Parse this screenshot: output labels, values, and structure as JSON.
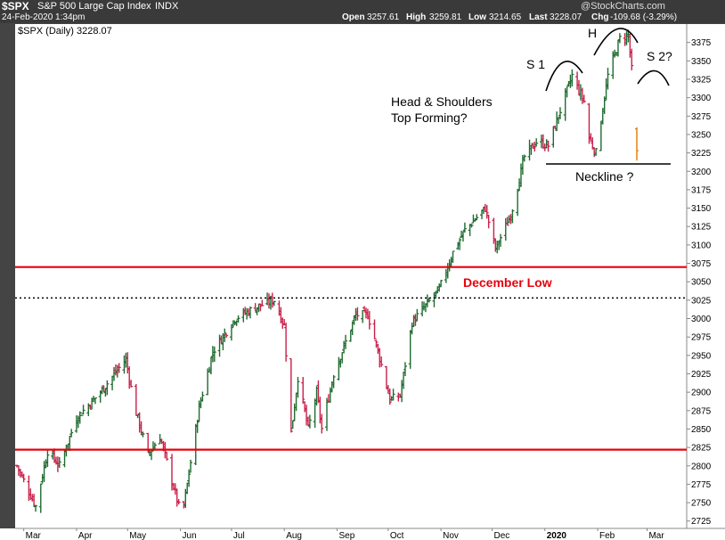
{
  "header": {
    "symbol": "$SPX",
    "name": "S&P 500 Large Cap Index",
    "exchange": "INDX",
    "datetime": "24-Feb-2020 1:34pm",
    "open_label": "Open",
    "open": "3257.61",
    "high_label": "High",
    "high": "3259.81",
    "low_label": "Low",
    "low": "3214.65",
    "last_label": "Last",
    "last": "3228.07",
    "chg_label": "Chg",
    "chg": "-109.68 (-3.29%)",
    "watermark": "@StockCharts.com"
  },
  "legend": {
    "text": "$SPX (Daily) 3228.07"
  },
  "colors": {
    "up": "#1f6b2f",
    "down": "#c8204a",
    "support": "#e8000d",
    "annot": "#000000",
    "last_bar": "#e07b00"
  },
  "chart_data": {
    "type": "candlestick",
    "title": "$SPX S&P 500 Large Cap Index INDX",
    "y_ticks": [
      2725,
      2750,
      2775,
      2800,
      2825,
      2850,
      2875,
      2900,
      2925,
      2950,
      2975,
      3000,
      3025,
      3050,
      3075,
      3100,
      3125,
      3150,
      3175,
      3200,
      3225,
      3250,
      3275,
      3300,
      3325,
      3350,
      3375
    ],
    "ylim": [
      2715,
      3400
    ],
    "x_tick_labels": [
      "Mar",
      "Apr",
      "May",
      "Jun",
      "Jul",
      "Aug",
      "Sep",
      "Oct",
      "Nov",
      "Dec",
      "2020",
      "Feb",
      "Mar"
    ],
    "x_tick_dates": [
      "2019-03-01",
      "2019-04-01",
      "2019-05-01",
      "2019-06-01",
      "2019-07-01",
      "2019-08-01",
      "2019-09-01",
      "2019-10-01",
      "2019-11-01",
      "2019-12-01",
      "2020-01-01",
      "2020-02-01",
      "2020-03-01"
    ],
    "date_range": [
      "2019-02-25",
      "2020-02-24"
    ],
    "price_path": [
      [
        "2019-02-25",
        2800
      ],
      [
        "2019-03-08",
        2745
      ],
      [
        "2019-03-15",
        2820
      ],
      [
        "2019-03-22",
        2800
      ],
      [
        "2019-04-01",
        2865
      ],
      [
        "2019-04-15",
        2900
      ],
      [
        "2019-04-30",
        2945
      ],
      [
        "2019-05-05",
        2880
      ],
      [
        "2019-05-13",
        2815
      ],
      [
        "2019-05-20",
        2840
      ],
      [
        "2019-05-31",
        2745
      ],
      [
        "2019-06-03",
        2745
      ],
      [
        "2019-06-12",
        2880
      ],
      [
        "2019-06-20",
        2955
      ],
      [
        "2019-07-03",
        3000
      ],
      [
        "2019-07-15",
        3015
      ],
      [
        "2019-07-26",
        3025
      ],
      [
        "2019-08-01",
        2990
      ],
      [
        "2019-08-05",
        2845
      ],
      [
        "2019-08-09",
        2920
      ],
      [
        "2019-08-15",
        2850
      ],
      [
        "2019-08-20",
        2900
      ],
      [
        "2019-08-23",
        2850
      ],
      [
        "2019-08-30",
        2925
      ],
      [
        "2019-09-12",
        3005
      ],
      [
        "2019-09-19",
        3005
      ],
      [
        "2019-09-24",
        2965
      ],
      [
        "2019-10-02",
        2890
      ],
      [
        "2019-10-08",
        2895
      ],
      [
        "2019-10-15",
        2995
      ],
      [
        "2019-10-31",
        3040
      ],
      [
        "2019-11-08",
        3090
      ],
      [
        "2019-11-15",
        3120
      ],
      [
        "2019-11-27",
        3150
      ],
      [
        "2019-12-03",
        3095
      ],
      [
        "2019-12-12",
        3140
      ],
      [
        "2019-12-20",
        3220
      ],
      [
        "2019-12-27",
        3240
      ],
      [
        "2020-01-03",
        3235
      ],
      [
        "2020-01-17",
        3330
      ],
      [
        "2020-01-24",
        3295
      ],
      [
        "2020-01-27",
        3245
      ],
      [
        "2020-01-31",
        3225
      ],
      [
        "2020-02-07",
        3330
      ],
      [
        "2020-02-14",
        3380
      ],
      [
        "2020-02-19",
        3385
      ],
      [
        "2020-02-21",
        3338
      ],
      [
        "2020-02-24",
        3228
      ]
    ],
    "last_bar": {
      "date": "2020-02-24",
      "open": 3257.61,
      "high": 3259.81,
      "low": 3214.65,
      "close": 3228.07
    },
    "horizontal_lines": [
      {
        "label": "December Low",
        "value": 3070,
        "style": "solid",
        "color": "#e8000d"
      },
      {
        "value": 3028,
        "style": "dotted",
        "color": "#000000"
      },
      {
        "value": 2822,
        "style": "solid",
        "color": "#e8000d"
      }
    ]
  },
  "annotations": {
    "head_shoulders_line1": "Head & Shoulders",
    "head_shoulders_line2": "Top Forming?",
    "s1": "S 1",
    "h": "H",
    "s2": "S 2?",
    "neckline": "Neckline ?",
    "december_low": "December Low"
  }
}
